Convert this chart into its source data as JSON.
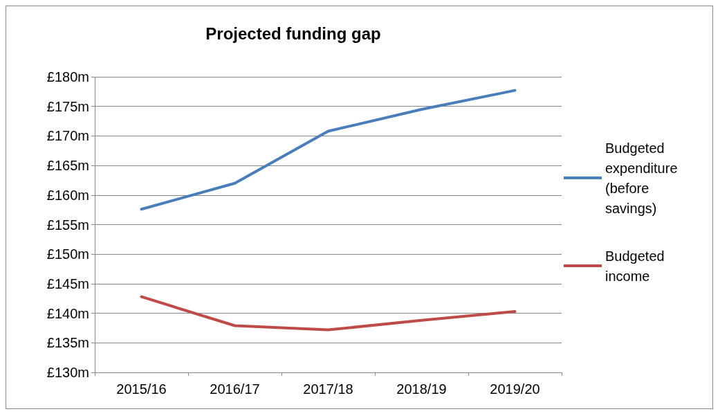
{
  "chart_data": {
    "type": "line",
    "title": "Projected funding gap",
    "categories": [
      "2015/16",
      "2016/17",
      "2017/18",
      "2018/19",
      "2019/20"
    ],
    "series": [
      {
        "name": "Budgeted expenditure (before savings)",
        "color": "#4a7ebb",
        "values": [
          157.6,
          162.0,
          170.8,
          174.5,
          177.7
        ]
      },
      {
        "name": "Budgeted income",
        "color": "#be4b48",
        "values": [
          142.8,
          137.9,
          137.2,
          138.8,
          140.3
        ]
      }
    ],
    "ylim": [
      130,
      180
    ],
    "yticks": [
      {
        "value": 130,
        "label": "£130m"
      },
      {
        "value": 135,
        "label": "£135m"
      },
      {
        "value": 140,
        "label": "£140m"
      },
      {
        "value": 145,
        "label": "£145m"
      },
      {
        "value": 150,
        "label": "£150m"
      },
      {
        "value": 155,
        "label": "£155m"
      },
      {
        "value": 160,
        "label": "£160m"
      },
      {
        "value": 165,
        "label": "£165m"
      },
      {
        "value": 170,
        "label": "£170m"
      },
      {
        "value": 175,
        "label": "£175m"
      },
      {
        "value": 180,
        "label": "£180m"
      }
    ],
    "grid": "y",
    "legend": "right",
    "marker": "none",
    "line_style": "solid"
  }
}
